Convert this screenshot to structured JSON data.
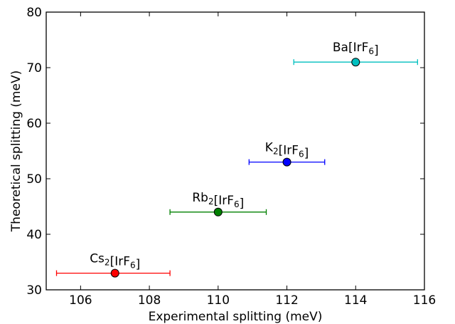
{
  "chart_data": {
    "type": "scatter",
    "xlabel": "Experimental splitting (meV)",
    "ylabel": "Theoretical splitting (meV)",
    "xlim": [
      105,
      116
    ],
    "ylim": [
      30,
      80
    ],
    "x_ticks": [
      "106",
      "108",
      "110",
      "112",
      "114",
      "116"
    ],
    "y_ticks": [
      "30",
      "40",
      "50",
      "60",
      "70",
      "80"
    ],
    "grid": false,
    "points": [
      {
        "label": {
          "base": "Cs",
          "sub": "2",
          "rest": "[IrF",
          "sub2": "6",
          "end": "]"
        },
        "x": 107.0,
        "y": 33.0,
        "xerr_low": 105.3,
        "xerr_high": 108.6,
        "color": "#ff0000"
      },
      {
        "label": {
          "base": "Rb",
          "sub": "2",
          "rest": "[IrF",
          "sub2": "6",
          "end": "]"
        },
        "x": 110.0,
        "y": 44.0,
        "xerr_low": 108.6,
        "xerr_high": 111.4,
        "color": "#008000"
      },
      {
        "label": {
          "base": "K",
          "sub": "2",
          "rest": "[IrF",
          "sub2": "6",
          "end": "]"
        },
        "x": 112.0,
        "y": 53.0,
        "xerr_low": 110.9,
        "xerr_high": 113.1,
        "color": "#0000ff"
      },
      {
        "label": {
          "base": "Ba[IrF",
          "sub": "6",
          "rest": "]",
          "sub2": "",
          "end": ""
        },
        "x": 114.0,
        "y": 71.0,
        "xerr_low": 112.2,
        "xerr_high": 115.8,
        "color": "#00bfbf"
      }
    ]
  }
}
